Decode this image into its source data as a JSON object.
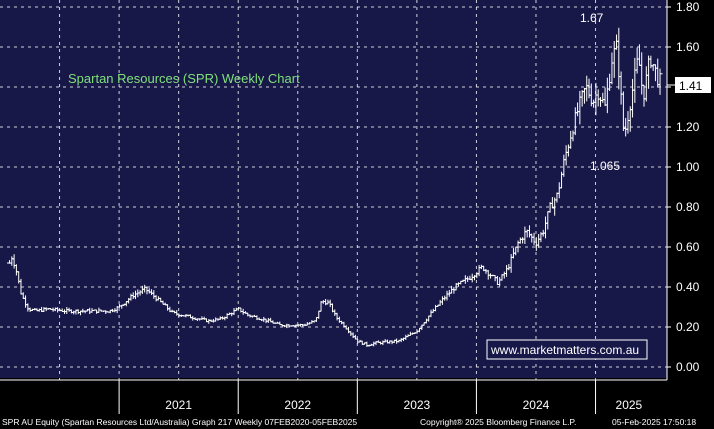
{
  "chart_data": {
    "type": "ohlc",
    "title": "Spartan Resources (SPR) Weekly Chart",
    "watermark": "www.marketmatters.com.au",
    "footer_left": "SPR AU Equity (Spartan Resources Ltd/Australia) Graph 217  Weekly 07FEB2020-05FEB2025",
    "footer_mid": "Copyright® 2025 Bloomberg Finance L.P.",
    "footer_right": "05-Feb-2025 17:50:18",
    "x_labels": [
      "2021",
      "2022",
      "2023",
      "2024",
      "2025"
    ],
    "y_ticks": [
      "0.00",
      "0.20",
      "0.40",
      "0.60",
      "0.80",
      "1.00",
      "1.20",
      "1.40",
      "1.60",
      "1.80"
    ],
    "ylim": [
      0,
      1.8
    ],
    "last_price": "1.41",
    "annotations": {
      "high": "1.67",
      "low": "1.065"
    },
    "colors": {
      "background": "#181848",
      "price": "#ffffff",
      "grid": "#ffffff",
      "title": "#7fe07a",
      "last_box": "#ffffff"
    },
    "anchors": [
      {
        "t": 2020.08,
        "p": 0.52
      },
      {
        "t": 2020.1,
        "p": 0.55
      },
      {
        "t": 2020.13,
        "p": 0.5
      },
      {
        "t": 2020.18,
        "p": 0.36
      },
      {
        "t": 2020.24,
        "p": 0.29
      },
      {
        "t": 2020.3,
        "p": 0.28
      },
      {
        "t": 2020.4,
        "p": 0.29
      },
      {
        "t": 2020.55,
        "p": 0.28
      },
      {
        "t": 2020.75,
        "p": 0.28
      },
      {
        "t": 2020.92,
        "p": 0.28
      },
      {
        "t": 2021.0,
        "p": 0.3
      },
      {
        "t": 2021.12,
        "p": 0.36
      },
      {
        "t": 2021.22,
        "p": 0.39
      },
      {
        "t": 2021.3,
        "p": 0.35
      },
      {
        "t": 2021.45,
        "p": 0.27
      },
      {
        "t": 2021.6,
        "p": 0.25
      },
      {
        "t": 2021.75,
        "p": 0.23
      },
      {
        "t": 2021.85,
        "p": 0.24
      },
      {
        "t": 2022.0,
        "p": 0.29
      },
      {
        "t": 2022.08,
        "p": 0.26
      },
      {
        "t": 2022.2,
        "p": 0.24
      },
      {
        "t": 2022.35,
        "p": 0.21
      },
      {
        "t": 2022.55,
        "p": 0.21
      },
      {
        "t": 2022.65,
        "p": 0.23
      },
      {
        "t": 2022.7,
        "p": 0.33
      },
      {
        "t": 2022.76,
        "p": 0.32
      },
      {
        "t": 2022.82,
        "p": 0.25
      },
      {
        "t": 2022.9,
        "p": 0.2
      },
      {
        "t": 2023.0,
        "p": 0.13
      },
      {
        "t": 2023.08,
        "p": 0.11
      },
      {
        "t": 2023.15,
        "p": 0.12
      },
      {
        "t": 2023.35,
        "p": 0.13
      },
      {
        "t": 2023.5,
        "p": 0.18
      },
      {
        "t": 2023.62,
        "p": 0.27
      },
      {
        "t": 2023.72,
        "p": 0.34
      },
      {
        "t": 2023.82,
        "p": 0.4
      },
      {
        "t": 2023.95,
        "p": 0.45
      },
      {
        "t": 2024.05,
        "p": 0.5
      },
      {
        "t": 2024.12,
        "p": 0.46
      },
      {
        "t": 2024.18,
        "p": 0.42
      },
      {
        "t": 2024.26,
        "p": 0.49
      },
      {
        "t": 2024.35,
        "p": 0.62
      },
      {
        "t": 2024.42,
        "p": 0.68
      },
      {
        "t": 2024.5,
        "p": 0.62
      },
      {
        "t": 2024.56,
        "p": 0.68
      },
      {
        "t": 2024.62,
        "p": 0.8
      },
      {
        "t": 2024.68,
        "p": 0.86
      },
      {
        "t": 2024.74,
        "p": 1.04
      },
      {
        "t": 2024.8,
        "p": 1.18
      },
      {
        "t": 2024.86,
        "p": 1.3
      },
      {
        "t": 2024.92,
        "p": 1.4
      },
      {
        "t": 2024.98,
        "p": 1.33
      },
      {
        "t": 2025.02,
        "p": 1.38
      },
      {
        "t": 2025.08,
        "p": 1.3
      },
      {
        "t": 2025.14,
        "p": 1.55
      },
      {
        "t": 2025.18,
        "p": 1.6
      },
      {
        "t": 2025.24,
        "p": 1.15
      },
      {
        "t": 2025.3,
        "p": 1.35
      },
      {
        "t": 2025.36,
        "p": 1.55
      },
      {
        "t": 2025.4,
        "p": 1.35
      },
      {
        "t": 2025.46,
        "p": 1.55
      },
      {
        "t": 2025.52,
        "p": 1.45
      },
      {
        "t": 2025.56,
        "p": 1.41
      }
    ]
  }
}
